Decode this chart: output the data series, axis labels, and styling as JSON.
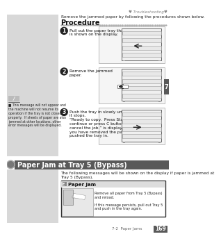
{
  "bg_color": "#ffffff",
  "header_text": "♥ Troubleshooting♥",
  "top_intro": "Remove the jammed paper by following the procedures shown below.",
  "procedure_title": "Procedure",
  "steps": [
    {
      "num": "1",
      "text": "Pull out the paper tray that\nis shown on the display."
    },
    {
      "num": "2",
      "text": "Remove the jammed\npaper."
    },
    {
      "num": "3",
      "text": "Push the tray in slowly until\nit stops.\n“Ready to copy.  Press Start to\ncontinue or press C button to\ncancel the job.” is displayed once\nyou have removed the paper and\npushed the tray in."
    }
  ],
  "note_bullet": "■",
  "note_text": "This message will not appear and\nthe machine will not resume its\noperation if the tray is not closed\nproperly.  If sheets of paper are also\njammed at other locations, other\nerror messages will be displayed.",
  "left_panel_color": "#d8d8d8",
  "section_bar_color": "#595959",
  "section_title": "Paper Jam at Tray 5 (Bypass)",
  "section_intro": "The following messages will be shown on the display if paper is jammed at\nTray 5 (Bypass).",
  "msg_box_header": "Paper Jam",
  "msg_box_text1": "Remove all paper from Tray 5 (Bypass)\nand reload.",
  "msg_box_text2": "If this message persists, pull out Tray 5\nand push in the tray again.",
  "tab_color": "#595959",
  "tab_text": "7",
  "footer_text": "7-2  Paper Jams",
  "footer_page": "169",
  "step_circle_color": "#222222",
  "step_num_color": "#ffffff",
  "dotted_line_color": "#999999",
  "img_border_color": "#bbbbbb",
  "img_bg_color": "#f5f5f5"
}
